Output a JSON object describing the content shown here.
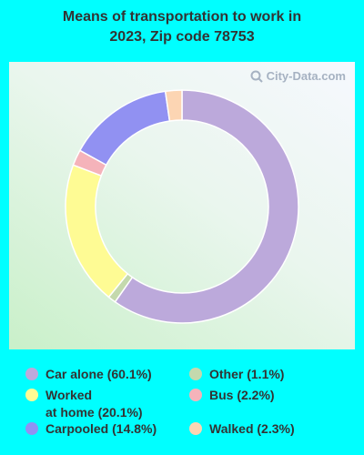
{
  "title": "Means of transportation to work in\n2023, Zip code 78753",
  "watermark": "City-Data.com",
  "chart_data": {
    "type": "pie",
    "donut": true,
    "title": "Means of transportation to work in 2023, Zip code 78753",
    "series": [
      {
        "name": "Car alone",
        "label": "Car alone (60.1%)",
        "value": 60.1,
        "color": "#bca9db"
      },
      {
        "name": "Other",
        "label": "Other (1.1%)",
        "value": 1.1,
        "color": "#c4d9ad"
      },
      {
        "name": "Worked at home",
        "label": "Worked\nat home (20.1%)",
        "value": 20.1,
        "color": "#fefb94"
      },
      {
        "name": "Bus",
        "label": "Bus (2.2%)",
        "value": 2.2,
        "color": "#f5b3ba"
      },
      {
        "name": "Carpooled",
        "label": "Carpooled (14.8%)",
        "value": 14.8,
        "color": "#9191f2"
      },
      {
        "name": "Walked",
        "label": "Walked (2.3%)",
        "value": 2.3,
        "color": "#fcd5b3"
      }
    ],
    "legend_placement": "bottom"
  }
}
